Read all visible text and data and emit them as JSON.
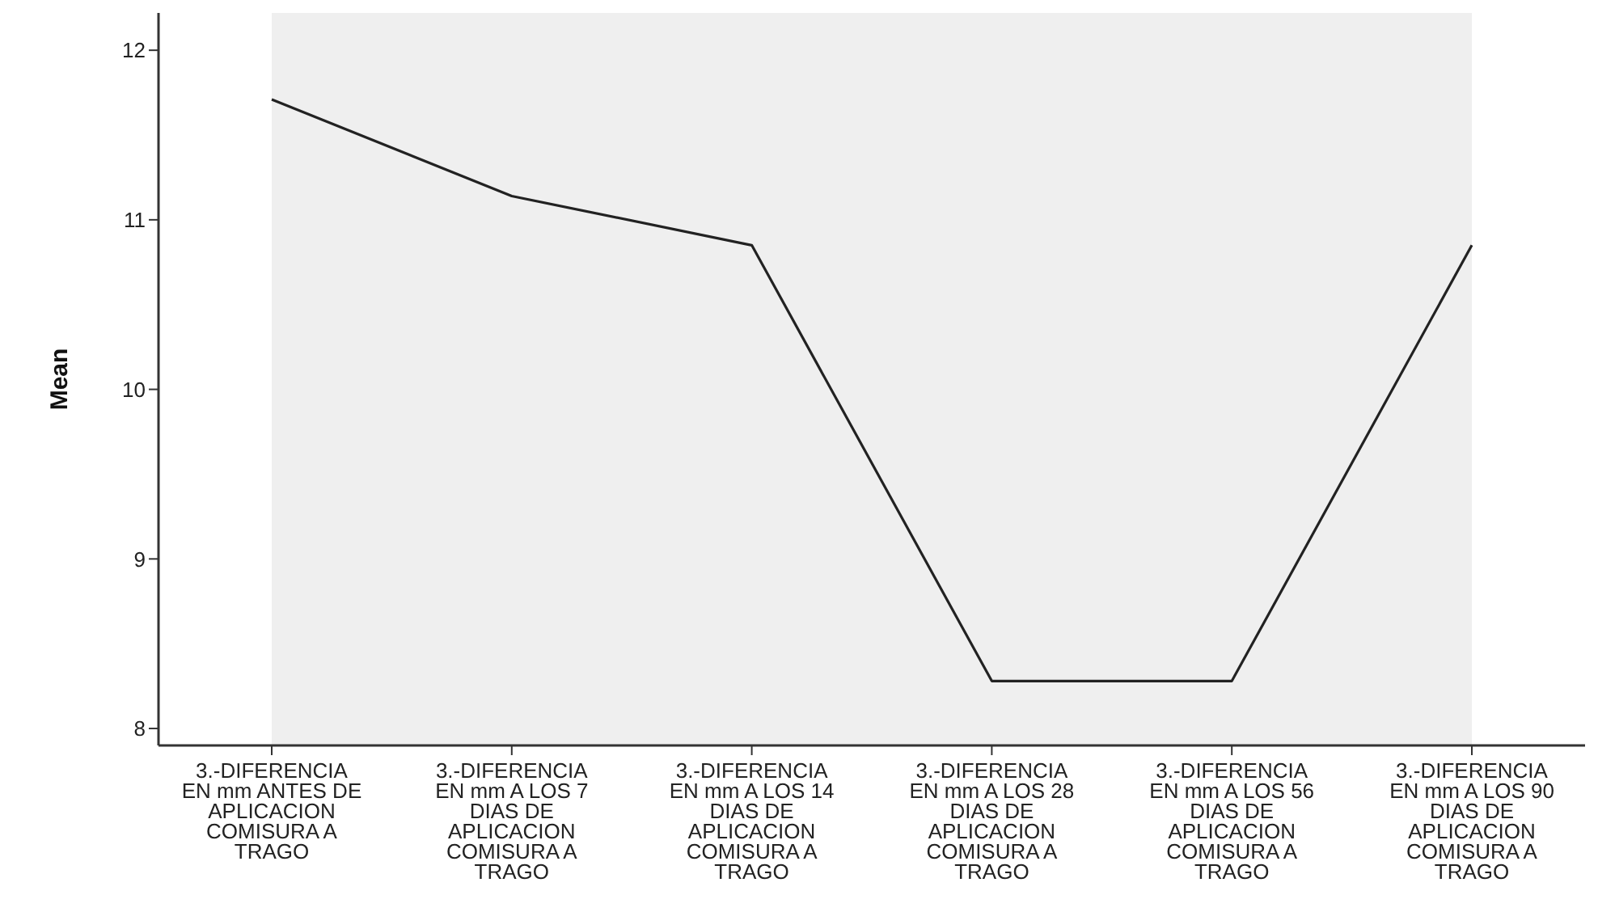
{
  "chart_data": {
    "type": "line",
    "ylabel": "Mean",
    "categories": [
      "3.-DIFERENCIA EN mm ANTES DE APLICACION COMISURA A TRAGO",
      "3.-DIFERENCIA EN mm A LOS 7 DIAS DE APLICACION COMISURA A TRAGO",
      "3.-DIFERENCIA EN mm A LOS 14 DIAS DE APLICACION COMISURA A TRAGO",
      "3.-DIFERENCIA EN mm A LOS 28 DIAS DE APLICACION COMISURA A TRAGO",
      "3.-DIFERENCIA EN mm A LOS 56 DIAS DE APLICACION COMISURA A TRAGO",
      "3.-DIFERENCIA EN mm A LOS 90 DIAS DE APLICACION COMISURA A TRAGO"
    ],
    "series": [
      {
        "color": "#222222",
        "values": [
          11.71,
          11.14,
          10.85,
          8.28,
          8.28,
          10.85
        ]
      }
    ],
    "ylim": [
      7.9,
      12.22
    ],
    "yticks": [
      8,
      9,
      10,
      11,
      12
    ],
    "grid": false,
    "legend": false,
    "marker": "none",
    "line_style": "solid"
  }
}
